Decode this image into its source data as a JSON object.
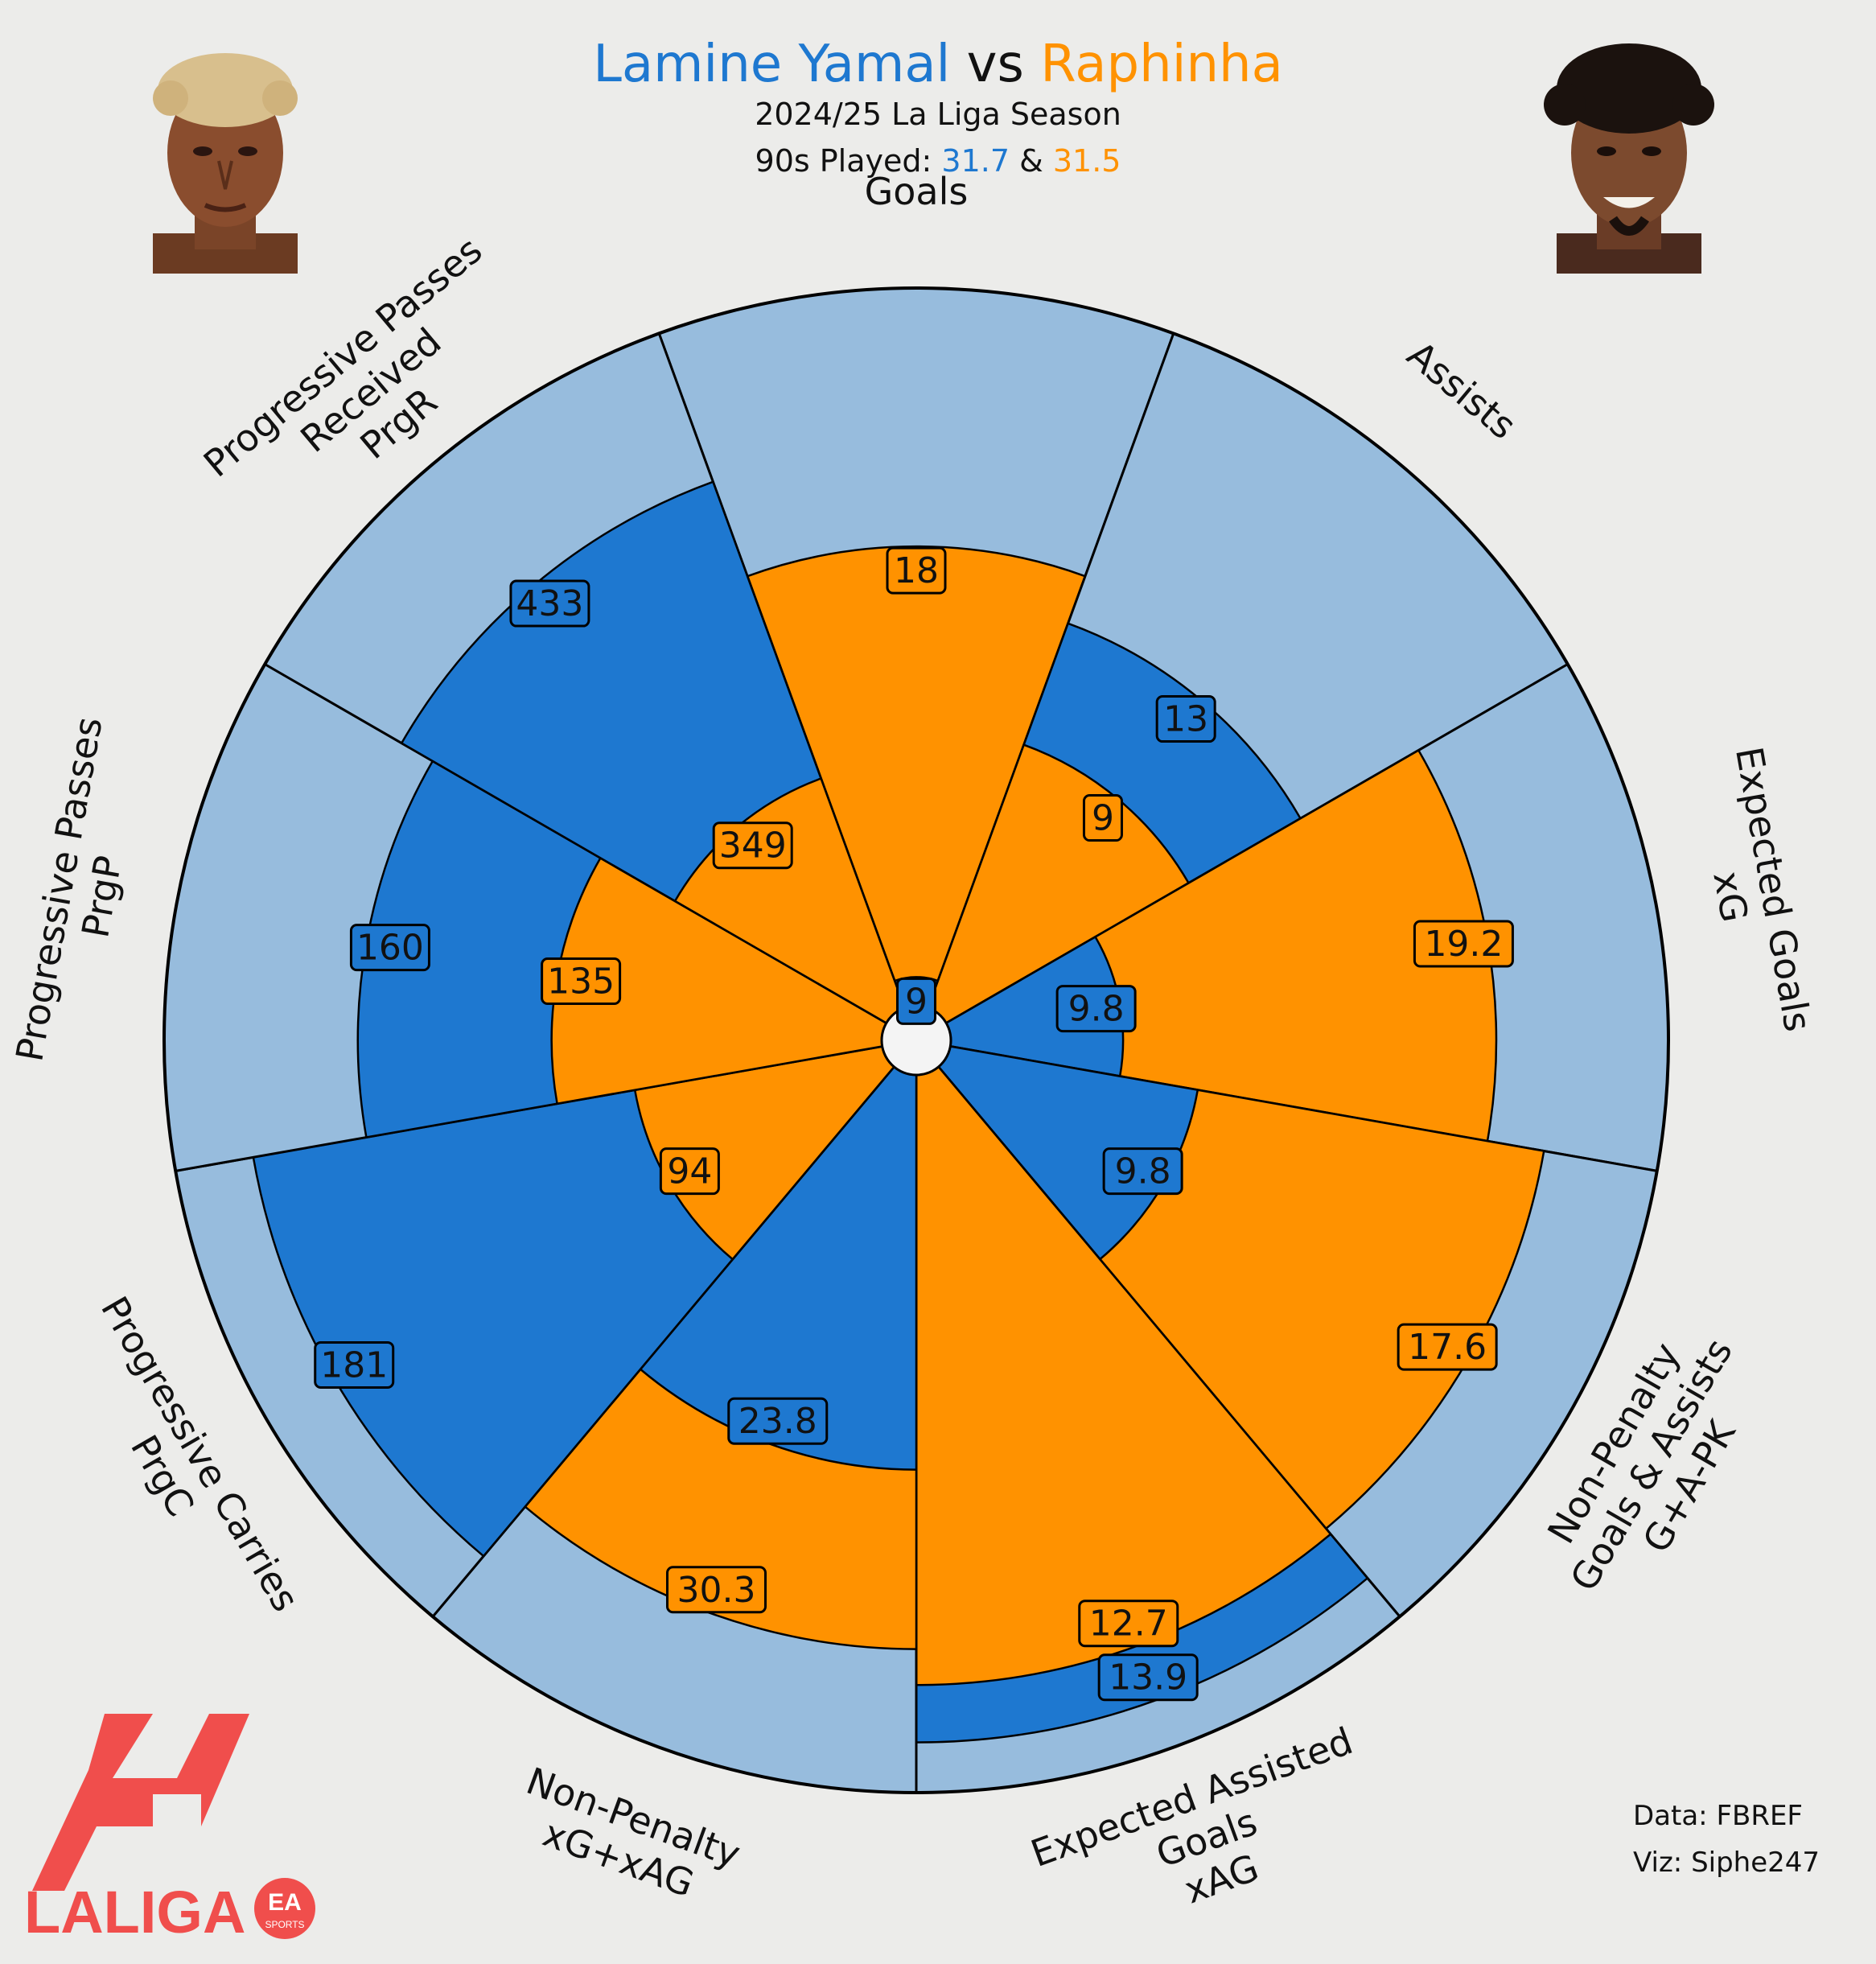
{
  "header": {
    "player1": "Lamine Yamal",
    "vs": "vs",
    "player2": "Raphinha",
    "season": "2024/25 La Liga Season",
    "played_label": "90s Played:",
    "played1": "31.7",
    "amp": "&",
    "played2": "31.5"
  },
  "colors": {
    "player1": "#1e78d0",
    "player2": "#ff9200",
    "background_wedge": "#97bcdd",
    "page_bg": "#ececea",
    "logo_red": "#f04e4c"
  },
  "credits": {
    "data": "Data: FBREF",
    "viz": "Viz: Siphe247"
  },
  "logo": {
    "text": "LALIGA",
    "badge_top": "EA",
    "badge_bottom": "SPORTS"
  },
  "photos": {
    "left_icon": "player-portrait-lamine-yamal",
    "right_icon": "player-portrait-raphinha"
  },
  "chart_data": {
    "type": "pizza",
    "series": [
      {
        "name": "Lamine Yamal",
        "color": "#1e78d0",
        "values": [
          "9",
          "13",
          "9.8",
          "9.8",
          "13.9",
          "23.8",
          "181",
          "160",
          "433"
        ],
        "percentiles": [
          4,
          57,
          24,
          35,
          93,
          55,
          89,
          73,
          78
        ]
      },
      {
        "name": "Raphinha",
        "color": "#ff9200",
        "values": [
          "18",
          "9",
          "19.2",
          "17.6",
          "12.7",
          "30.3",
          "94",
          "135",
          "349"
        ],
        "percentiles": [
          64,
          39,
          76,
          84,
          85,
          80,
          35,
          46,
          34
        ]
      }
    ],
    "categories": [
      {
        "label": [
          "Goals"
        ]
      },
      {
        "label": [
          "Assists"
        ]
      },
      {
        "label": [
          "Expected Goals",
          "xG"
        ]
      },
      {
        "label": [
          "Non-Penalty",
          "Goals & Assists",
          "G+A-PK"
        ]
      },
      {
        "label": [
          "Expected Assisted",
          "Goals",
          "xAG"
        ]
      },
      {
        "label": [
          "Non-Penalty",
          "xG+xAG"
        ]
      },
      {
        "label": [
          "Progressive Carries",
          "PrgC"
        ]
      },
      {
        "label": [
          "Progressive Passes",
          "PrgP"
        ]
      },
      {
        "label": [
          "Progressive Passes",
          "Received",
          "PrgR"
        ]
      }
    ]
  }
}
